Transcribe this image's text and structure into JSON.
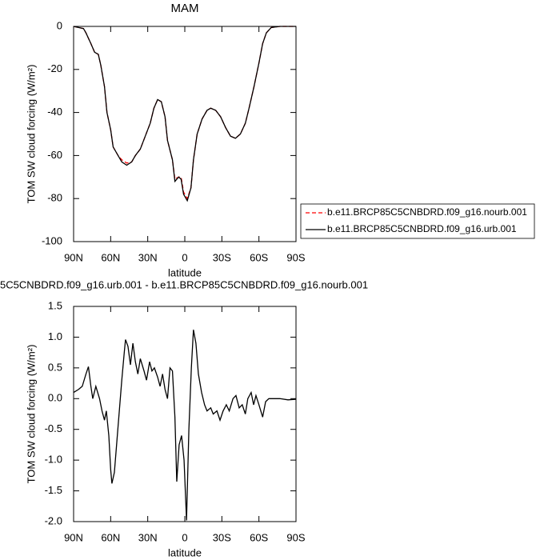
{
  "chart_data": [
    {
      "type": "line",
      "title": "MAM",
      "xlabel": "latitude",
      "ylabel": "TOM SW cloud forcing (W/m²)",
      "x": [
        90,
        86,
        82,
        80,
        76,
        73,
        70,
        68,
        65,
        63,
        60,
        58,
        54,
        51,
        47,
        43,
        40,
        36,
        32,
        28,
        25,
        22,
        19,
        16,
        14,
        10,
        8,
        5,
        3,
        1,
        -2,
        -5,
        -7,
        -10,
        -14,
        -18,
        -21,
        -25,
        -29,
        -33,
        -37,
        -41,
        -45,
        -49,
        -52,
        -56,
        -60,
        -63,
        -66,
        -70,
        -77,
        -90
      ],
      "series": [
        {
          "name": "b.e11.BRCP85C5CNBDRD.f09_g16.nourb.001",
          "color": "#ff0000",
          "dash": true,
          "values": [
            0,
            -0.5,
            -1,
            -3,
            -8,
            -12,
            -13,
            -18,
            -28,
            -40,
            -48,
            -56,
            -60,
            -62,
            -63.5,
            -63,
            -60,
            -57,
            -51,
            -45,
            -38,
            -34,
            -35,
            -42,
            -53,
            -62,
            -71,
            -70,
            -70,
            -77,
            -80,
            -75,
            -62,
            -50,
            -43,
            -39,
            -38,
            -39,
            -42,
            -47,
            -51,
            -52,
            -50,
            -45,
            -38,
            -28,
            -17,
            -8,
            -3,
            -0.5,
            0,
            0
          ]
        },
        {
          "name": "b.e11.BRCP85C5CNBDRD.f09_g16.urb.001",
          "color": "#000000",
          "dash": false,
          "values": [
            0,
            -0.5,
            -1,
            -3,
            -8,
            -12,
            -13,
            -18,
            -28,
            -40,
            -48,
            -56,
            -60,
            -63,
            -64.5,
            -63,
            -60,
            -57,
            -51,
            -45,
            -38,
            -34,
            -35,
            -42,
            -53,
            -62,
            -72,
            -70,
            -71,
            -78,
            -81,
            -75,
            -62,
            -50,
            -43,
            -39,
            -38,
            -39,
            -42,
            -47,
            -51,
            -52,
            -50,
            -45,
            -38,
            -28,
            -17,
            -8,
            -3,
            -0.5,
            0,
            0
          ]
        }
      ],
      "xlim": [
        90,
        -90
      ],
      "xticks": [
        {
          "value": 90,
          "label": "90N"
        },
        {
          "value": 60,
          "label": "60N"
        },
        {
          "value": 30,
          "label": "30N"
        },
        0,
        {
          "value": -30,
          "label": "30S"
        },
        {
          "value": -60,
          "label": "60S"
        },
        {
          "value": -90,
          "label": "90S"
        }
      ],
      "ylim": [
        -100,
        0
      ],
      "yticks": [
        -100,
        -80,
        -60,
        -40,
        -20,
        0
      ],
      "legend": "outside-right"
    },
    {
      "type": "line",
      "title": "5C5CNBDRD.f09_g16.urb.001 - b.e11.BRCP85C5CNBDRD.f09_g16.nourb.001",
      "xlabel": "latitude",
      "ylabel": "TOM SW cloud forcing (W/m²)",
      "x": [
        90,
        86,
        83,
        80,
        78,
        76,
        74.5,
        72,
        69,
        67,
        65,
        63.5,
        61.5,
        60,
        59,
        57,
        55,
        53,
        51,
        49,
        48,
        46,
        44,
        42,
        40,
        38,
        36,
        33,
        31,
        28.5,
        26.6,
        24.6,
        22,
        20,
        18,
        16,
        14,
        12,
        10,
        8,
        6.5,
        4.6,
        2.6,
        0.6,
        -1.4,
        -3.3,
        -5.3,
        -7,
        -9,
        -11,
        -13.6,
        -16,
        -18,
        -21,
        -23,
        -26,
        -28.5,
        -31,
        -33.6,
        -36,
        -39,
        -41.4,
        -44,
        -46.5,
        -49,
        -51,
        -53.7,
        -55.7,
        -57.6,
        -60,
        -63,
        -65.4,
        -68,
        -70.5,
        -77,
        -83.5,
        -90
      ],
      "series": [
        {
          "color": "#000000",
          "dash": false,
          "values": [
            0.1,
            0.15,
            0.2,
            0.4,
            0.52,
            0.2,
            0.0,
            0.2,
            0.0,
            -0.2,
            -0.35,
            -0.2,
            -0.6,
            -1.15,
            -1.38,
            -1.2,
            -0.7,
            -0.2,
            0.3,
            0.75,
            0.96,
            0.85,
            0.55,
            0.9,
            0.6,
            0.4,
            0.65,
            0.45,
            0.3,
            0.6,
            0.45,
            0.5,
            0.35,
            0.2,
            0.4,
            0.15,
            0.0,
            0.5,
            0.45,
            -0.3,
            -1.35,
            -0.75,
            -0.6,
            -1.0,
            -1.98,
            -0.5,
            0.5,
            1.12,
            0.9,
            0.4,
            0.1,
            -0.1,
            -0.2,
            -0.15,
            -0.25,
            -0.2,
            -0.35,
            -0.2,
            -0.1,
            -0.2,
            0.0,
            0.05,
            -0.15,
            -0.1,
            -0.25,
            0.0,
            0.1,
            -0.1,
            0.05,
            -0.1,
            -0.3,
            -0.05,
            0.0,
            0.0,
            0.0,
            -0.02,
            -0.01
          ]
        }
      ],
      "xlim": [
        90,
        -90
      ],
      "xticks": [
        {
          "value": 90,
          "label": "90N"
        },
        {
          "value": 60,
          "label": "60N"
        },
        {
          "value": 30,
          "label": "30N"
        },
        0,
        {
          "value": -30,
          "label": "30S"
        },
        {
          "value": -60,
          "label": "60S"
        },
        {
          "value": -90,
          "label": "90S"
        }
      ],
      "ylim": [
        -2,
        1.5
      ],
      "yticks": [
        {
          "value": -2,
          "label": "-2.0"
        },
        -1.5,
        {
          "value": -1,
          "label": "-1.0"
        },
        -0.5,
        {
          "value": 0,
          "label": "0.0"
        },
        0.5,
        {
          "value": 1,
          "label": "1.0"
        },
        1.5
      ]
    }
  ]
}
